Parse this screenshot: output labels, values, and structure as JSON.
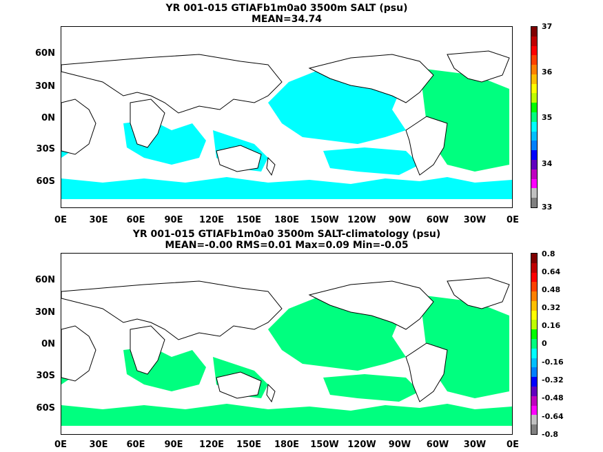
{
  "maps": [
    {
      "title_line1": "YR 001-015 GTIAFb1m0a0 3500m SALT (psu)",
      "title_line2": "MEAN=34.74",
      "fill_color": "#00ffff",
      "accent_fill_color": "#00ff7f",
      "colorbar_labels": [
        "37",
        "36",
        "35",
        "34",
        "33"
      ],
      "colorbar_colors": [
        "#7f0000",
        "#bf0000",
        "#ff0000",
        "#ff4000",
        "#ff8000",
        "#ffbf00",
        "#ffff00",
        "#bfff00",
        "#00ff00",
        "#00ff7f",
        "#00ffff",
        "#00bfff",
        "#0080ff",
        "#0000ff",
        "#6000bf",
        "#bf00bf",
        "#ff00ff",
        "#c0c0c0",
        "#808080"
      ]
    },
    {
      "title_line1": "YR 001-015 GTIAFb1m0a0 3500m SALT-climatology (psu)",
      "title_line2": "MEAN=-0.00   RMS=0.01   Max=0.09   Min=-0.05",
      "fill_color": "#00ff7f",
      "accent_fill_color": "#80ff80",
      "colorbar_labels": [
        "0.8",
        "0.64",
        "0.48",
        "0.32",
        "0.16",
        "0",
        "-0.16",
        "-0.32",
        "-0.48",
        "-0.64",
        "-0.8"
      ],
      "colorbar_colors": [
        "#7f0000",
        "#bf0000",
        "#ff0000",
        "#ff4000",
        "#ff8000",
        "#ffbf00",
        "#ffff00",
        "#bfff00",
        "#00ff00",
        "#00ff7f",
        "#00ffff",
        "#00bfff",
        "#0080ff",
        "#0000ff",
        "#6000bf",
        "#bf00bf",
        "#ff00ff",
        "#c0c0c0",
        "#808080"
      ]
    }
  ],
  "lat_labels": [
    "60N",
    "30N",
    "0N",
    "30S",
    "60S"
  ],
  "lon_labels": [
    "0E",
    "30E",
    "60E",
    "90E",
    "120E",
    "150E",
    "180E",
    "150W",
    "120W",
    "90W",
    "60W",
    "30W",
    "0E"
  ]
}
